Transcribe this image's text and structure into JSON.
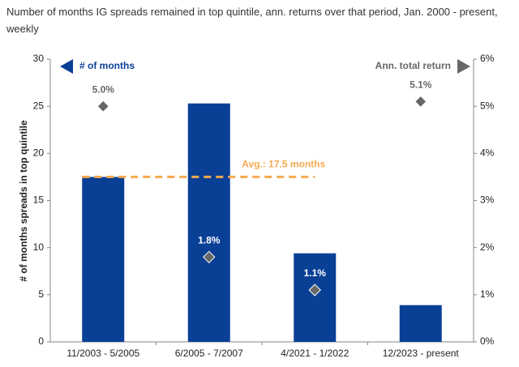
{
  "chart_data": {
    "type": "bar",
    "title": "Number of months IG spreads remained in top quintile, ann. returns over that period, Jan. 2000 - present, weekly",
    "y_label": "# of months spreads in top quintile",
    "categories": [
      "11/2003 - 5/2005",
      "6/2005 - 7/2007",
      "4/2021 - 1/2022",
      "12/2023 - present"
    ],
    "series": [
      {
        "name": "# of months",
        "type": "bar",
        "color": "#0a3f96",
        "values": [
          17.5,
          25.3,
          9.4,
          3.9
        ]
      },
      {
        "name": "Ann. total return",
        "type": "scatter",
        "axis": "y2",
        "color": "#666666",
        "values": [
          5.0,
          1.8,
          1.1,
          5.1
        ],
        "value_labels": [
          "5.0%",
          "1.8%",
          "1.1%",
          "5.1%"
        ]
      }
    ],
    "average": {
      "value": 17.5,
      "label": "Avg.: 17.5 months",
      "color": "#f4a950"
    },
    "ylim": [
      0,
      30
    ],
    "yticks": [
      0,
      5,
      10,
      15,
      20,
      25,
      30
    ],
    "y2lim": [
      0,
      6
    ],
    "y2ticks": [
      {
        "value": 0,
        "label": "0%"
      },
      {
        "value": 1,
        "label": "1%"
      },
      {
        "value": 2,
        "label": "2%"
      },
      {
        "value": 3,
        "label": "3%"
      },
      {
        "value": 4,
        "label": "4%"
      },
      {
        "value": 5,
        "label": "5%"
      },
      {
        "value": 6,
        "label": "6%"
      }
    ],
    "grid": false,
    "legend": "top"
  }
}
